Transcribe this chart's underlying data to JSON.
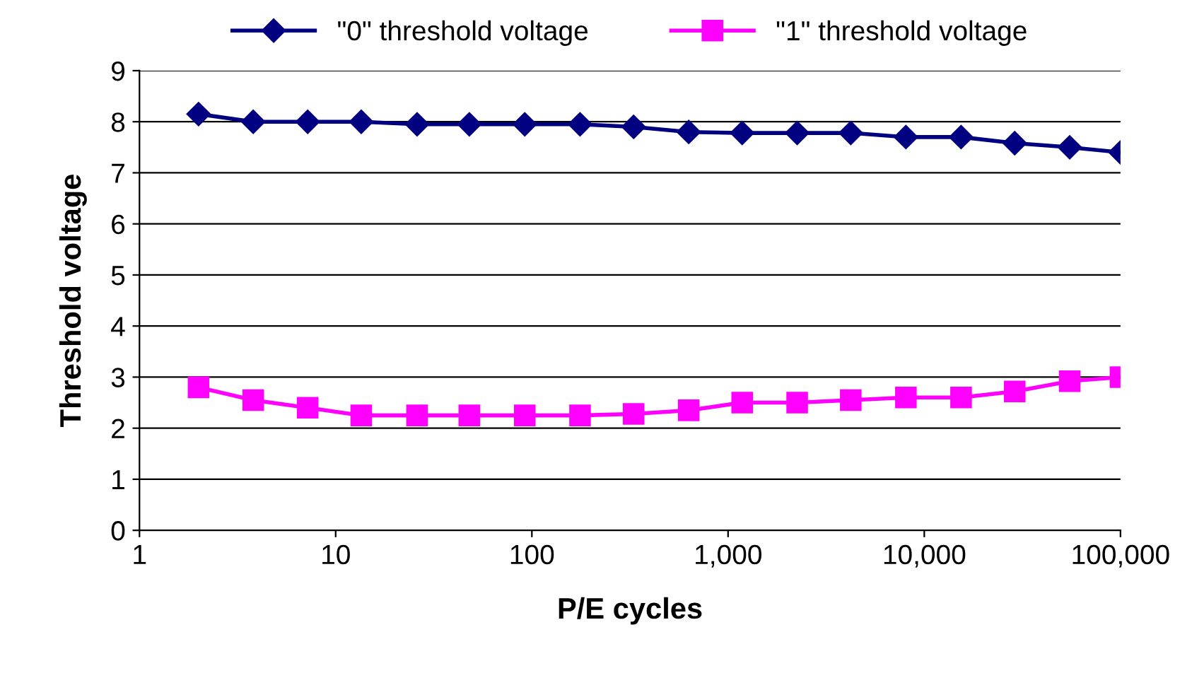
{
  "chart_data": {
    "type": "line",
    "xlabel": "P/E cycles",
    "ylabel": "Threshold voltage",
    "x": [
      2,
      3.8,
      7.2,
      13.5,
      26,
      48,
      92,
      176,
      330,
      630,
      1180,
      2250,
      4220,
      8060,
      15400,
      28900,
      55100,
      100000
    ],
    "series": [
      {
        "name": "\"0\" threshold voltage",
        "color": "#000080",
        "marker": "diamond",
        "values": [
          8.15,
          8.0,
          8.0,
          8.0,
          7.95,
          7.95,
          7.95,
          7.95,
          7.9,
          7.8,
          7.78,
          7.78,
          7.78,
          7.7,
          7.7,
          7.58,
          7.5,
          7.4
        ]
      },
      {
        "name": "\"1\" threshold voltage",
        "color": "#ff00ff",
        "marker": "square",
        "values": [
          2.8,
          2.55,
          2.4,
          2.25,
          2.25,
          2.25,
          2.25,
          2.25,
          2.28,
          2.35,
          2.5,
          2.5,
          2.55,
          2.6,
          2.6,
          2.72,
          2.92,
          3.0
        ]
      }
    ],
    "log": "x",
    "xlim": [
      1,
      100000
    ],
    "xticks": [
      1,
      10,
      100,
      {
        "value": 1000,
        "label": "1,000"
      },
      {
        "value": 10000,
        "label": "10,000"
      },
      {
        "value": 100000,
        "label": "100,000"
      }
    ],
    "ylim": [
      0,
      9
    ],
    "yticks": [
      0,
      1,
      2,
      3,
      4,
      5,
      6,
      7,
      8,
      9
    ],
    "grid": "y",
    "legend": "top",
    "line_style": "solid"
  }
}
